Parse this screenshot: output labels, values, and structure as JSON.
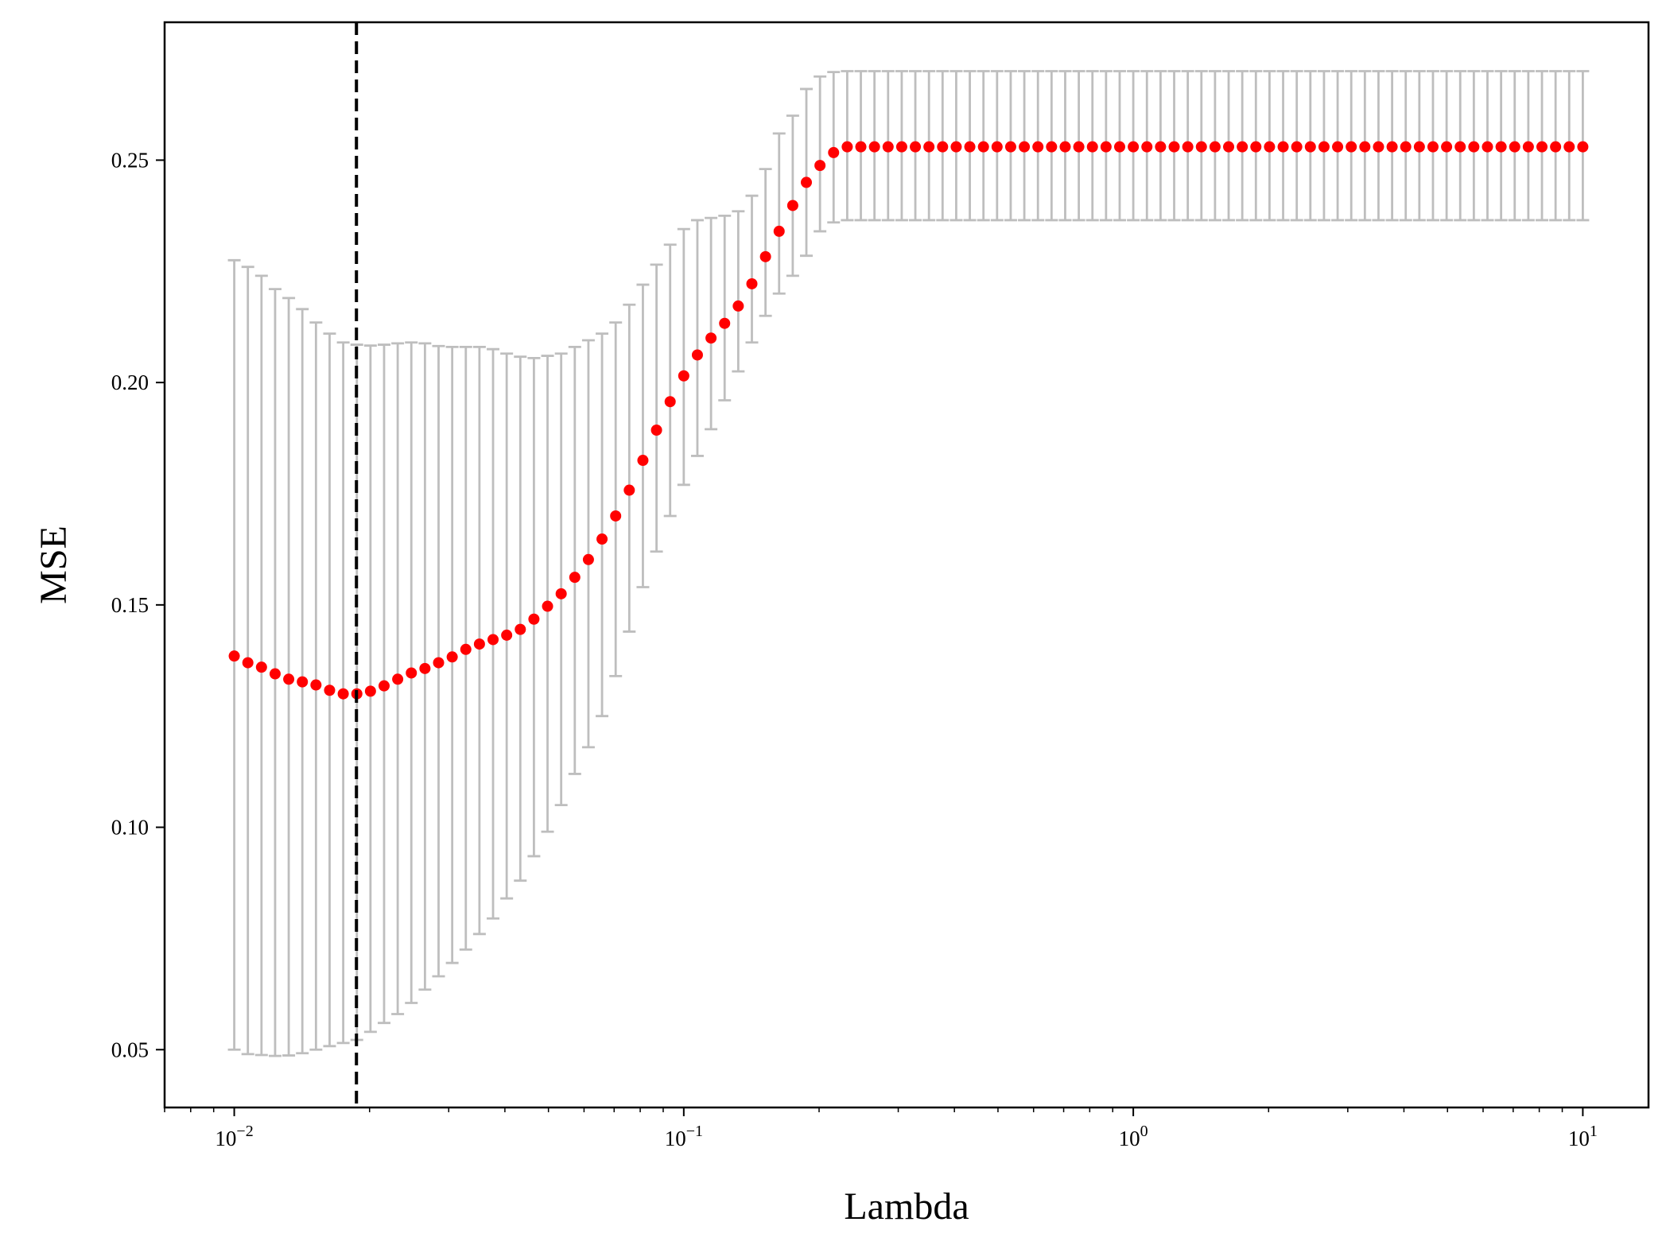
{
  "chart_data": {
    "type": "scatter",
    "xlabel": "Lambda",
    "ylabel": "MSE",
    "x_scale": "log",
    "xlim": [
      0.007,
      14
    ],
    "ylim": [
      0.037,
      0.281
    ],
    "x_ticks": [
      {
        "value": 0.01,
        "base": "10",
        "exp": "−2"
      },
      {
        "value": 0.1,
        "base": "10",
        "exp": "−1"
      },
      {
        "value": 1,
        "base": "10",
        "exp": "0"
      },
      {
        "value": 10,
        "base": "10",
        "exp": "1"
      }
    ],
    "y_ticks": [
      {
        "value": 0.05,
        "label": "0.05"
      },
      {
        "value": 0.1,
        "label": "0.10"
      },
      {
        "value": 0.15,
        "label": "0.15"
      },
      {
        "value": 0.2,
        "label": "0.20"
      },
      {
        "value": 0.25,
        "label": "0.25"
      }
    ],
    "selected_lambda": 0.0187,
    "lambda_min": 0.01,
    "lambda_max": 10,
    "n_points": 100,
    "mse": [
      0.1385,
      0.137,
      0.136,
      0.1345,
      0.1333,
      0.1327,
      0.132,
      0.1308,
      0.13,
      0.13,
      0.1306,
      0.1318,
      0.1333,
      0.1347,
      0.1357,
      0.137,
      0.1383,
      0.14,
      0.1412,
      0.1422,
      0.1432,
      0.1445,
      0.1468,
      0.1497,
      0.1525,
      0.1562,
      0.1602,
      0.1648,
      0.17,
      0.1758,
      0.1825,
      0.1893,
      0.1957,
      0.2015,
      0.2062,
      0.21,
      0.2133,
      0.2172,
      0.2222,
      0.2283,
      0.234,
      0.2398,
      0.245,
      0.2488,
      0.2517,
      0.253,
      0.253,
      0.253,
      0.253,
      0.253,
      0.253,
      0.253,
      0.253,
      0.253,
      0.253,
      0.253,
      0.253,
      0.253,
      0.253,
      0.253,
      0.253,
      0.253,
      0.253,
      0.253,
      0.253,
      0.253,
      0.253,
      0.253,
      0.253,
      0.253,
      0.253,
      0.253,
      0.253,
      0.253,
      0.253,
      0.253,
      0.253,
      0.253,
      0.253,
      0.253,
      0.253,
      0.253,
      0.253,
      0.253,
      0.253,
      0.253,
      0.253,
      0.253,
      0.253,
      0.253,
      0.253,
      0.253,
      0.253,
      0.253,
      0.253,
      0.253,
      0.253,
      0.253,
      0.253,
      0.253
    ],
    "error_upper": [
      0.2275,
      0.226,
      0.224,
      0.221,
      0.219,
      0.2165,
      0.2135,
      0.211,
      0.209,
      0.2085,
      0.2083,
      0.2085,
      0.2088,
      0.209,
      0.2088,
      0.2082,
      0.208,
      0.208,
      0.208,
      0.2075,
      0.2065,
      0.2058,
      0.2055,
      0.206,
      0.2065,
      0.208,
      0.2095,
      0.211,
      0.2135,
      0.2175,
      0.222,
      0.2265,
      0.231,
      0.2345,
      0.2365,
      0.237,
      0.2375,
      0.2385,
      0.242,
      0.248,
      0.256,
      0.26,
      0.266,
      0.2688,
      0.2698,
      0.27,
      0.27,
      0.27,
      0.27,
      0.27,
      0.27,
      0.27,
      0.27,
      0.27,
      0.27,
      0.27,
      0.27,
      0.27,
      0.27,
      0.27,
      0.27,
      0.27,
      0.27,
      0.27,
      0.27,
      0.27,
      0.27,
      0.27,
      0.27,
      0.27,
      0.27,
      0.27,
      0.27,
      0.27,
      0.27,
      0.27,
      0.27,
      0.27,
      0.27,
      0.27,
      0.27,
      0.27,
      0.27,
      0.27,
      0.27,
      0.27,
      0.27,
      0.27,
      0.27,
      0.27,
      0.27,
      0.27,
      0.27,
      0.27,
      0.27,
      0.27,
      0.27,
      0.27,
      0.27,
      0.27
    ],
    "error_lower": [
      0.05,
      0.049,
      0.0488,
      0.0486,
      0.0487,
      0.0492,
      0.05,
      0.0508,
      0.0515,
      0.0522,
      0.054,
      0.056,
      0.058,
      0.0605,
      0.0635,
      0.0665,
      0.0695,
      0.0725,
      0.076,
      0.0795,
      0.084,
      0.088,
      0.0935,
      0.099,
      0.105,
      0.112,
      0.118,
      0.125,
      0.134,
      0.144,
      0.154,
      0.162,
      0.17,
      0.177,
      0.1835,
      0.1895,
      0.196,
      0.2025,
      0.209,
      0.215,
      0.22,
      0.224,
      0.2285,
      0.234,
      0.236,
      0.2365,
      0.2365,
      0.2365,
      0.2365,
      0.2365,
      0.2365,
      0.2365,
      0.2365,
      0.2365,
      0.2365,
      0.2365,
      0.2365,
      0.2365,
      0.2365,
      0.2365,
      0.2365,
      0.2365,
      0.2365,
      0.2365,
      0.2365,
      0.2365,
      0.2365,
      0.2365,
      0.2365,
      0.2365,
      0.2365,
      0.2365,
      0.2365,
      0.2365,
      0.2365,
      0.2365,
      0.2365,
      0.2365,
      0.2365,
      0.2365,
      0.2365,
      0.2365,
      0.2365,
      0.2365,
      0.2365,
      0.2365,
      0.2365,
      0.2365,
      0.2365,
      0.2365,
      0.2365,
      0.2365,
      0.2365,
      0.2365,
      0.2365,
      0.2365,
      0.2365,
      0.2365,
      0.2365,
      0.2365
    ],
    "colors": {
      "points": "#ff0000",
      "errorbars": "#bebebe",
      "vline": "#000000",
      "axes": "#000000"
    }
  }
}
